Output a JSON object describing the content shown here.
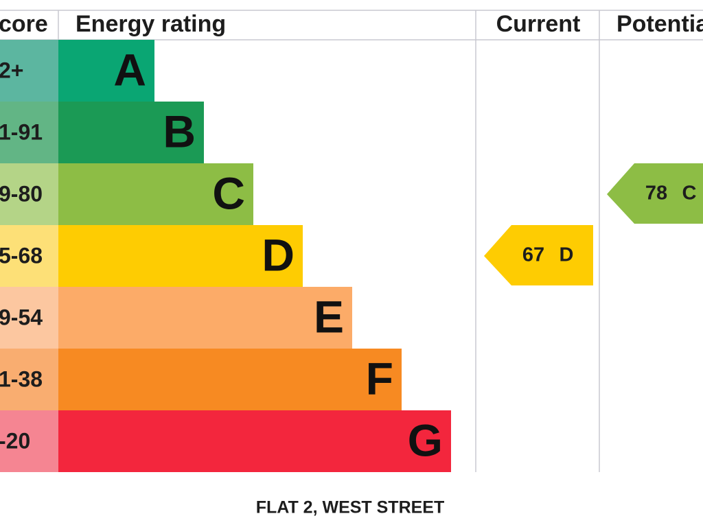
{
  "header": {
    "score": "core",
    "rating": "Energy rating",
    "current": "Current",
    "potential": "Potentia"
  },
  "bands": [
    {
      "range": "2+",
      "letter": "A"
    },
    {
      "range": "1-91",
      "letter": "B"
    },
    {
      "range": "9-80",
      "letter": "C"
    },
    {
      "range": "5-68",
      "letter": "D"
    },
    {
      "range": "9-54",
      "letter": "E"
    },
    {
      "range": "1-38",
      "letter": "F"
    },
    {
      "range": "-20",
      "letter": "G"
    }
  ],
  "current": {
    "value": 67,
    "letter": "D"
  },
  "potential": {
    "value": 78,
    "letter": "C"
  },
  "footer": "FLAT 2, WEST STREET"
}
